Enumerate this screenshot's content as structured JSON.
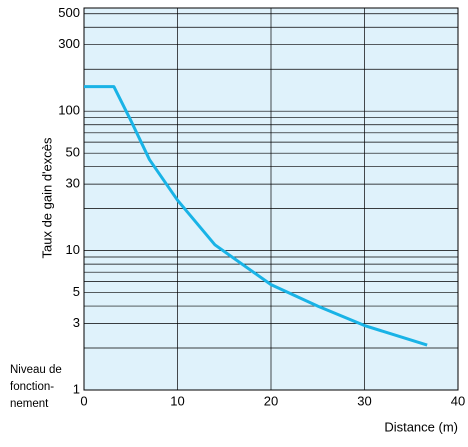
{
  "chart_data": {
    "type": "line",
    "y_label": "Taux de gain d'excès",
    "x_label": "Distance (m)",
    "annotation_lines": [
      "Niveau de",
      "fonction-",
      "nement"
    ],
    "x": [
      0,
      3.2,
      5,
      7,
      10,
      14,
      20,
      25,
      30,
      36.7
    ],
    "series": [
      {
        "name": "Taux de gain d'excès",
        "color": "#19b3e6",
        "values": [
          150,
          150,
          86,
          45,
          23,
          11,
          5.7,
          4,
          2.9,
          2.1
        ]
      }
    ],
    "xlim": [
      0,
      40
    ],
    "xticks": [
      0,
      10,
      20,
      30,
      40
    ],
    "ylim": [
      1,
      550
    ],
    "yticks": [
      1,
      3,
      5,
      10,
      30,
      50,
      100,
      300,
      500
    ],
    "minor_grid": [
      2,
      4,
      6,
      7,
      8,
      9,
      20,
      40,
      60,
      70,
      80,
      90,
      200,
      400
    ],
    "log_y": true,
    "grid": true,
    "background": "#dff2fb"
  }
}
